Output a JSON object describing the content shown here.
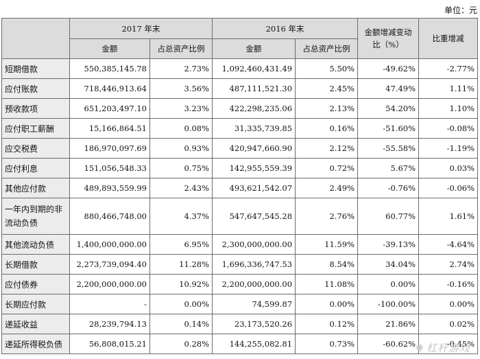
{
  "unit_label": "单位：元",
  "header": {
    "period_2017": "2017 年末",
    "period_2016": "2016 年末",
    "change": "金额增减变动比（%）",
    "ratio_change": "比重增减",
    "amount": "金额",
    "asset_ratio": "占总资产比例"
  },
  "rows": [
    {
      "name": "短期借款",
      "amt17": "550,385,145.78",
      "pct17": "2.73%",
      "amt16": "1,092,460,431.49",
      "pct16": "5.50%",
      "chg": "-49.62%",
      "rchg": "-2.77%"
    },
    {
      "name": "应付账款",
      "amt17": "718,446,913.64",
      "pct17": "3.56%",
      "amt16": "487,111,521.30",
      "pct16": "2.45%",
      "chg": "47.49%",
      "rchg": "1.11%"
    },
    {
      "name": "预收款项",
      "amt17": "651,203,497.10",
      "pct17": "3.23%",
      "amt16": "422,298,235.06",
      "pct16": "2.13%",
      "chg": "54.20%",
      "rchg": "1.10%"
    },
    {
      "name": "应付职工薪酬",
      "amt17": "15,166,864.51",
      "pct17": "0.08%",
      "amt16": "31,335,739.85",
      "pct16": "0.16%",
      "chg": "-51.60%",
      "rchg": "-0.08%"
    },
    {
      "name": "应交税费",
      "amt17": "186,970,097.69",
      "pct17": "0.93%",
      "amt16": "420,947,660.90",
      "pct16": "2.12%",
      "chg": "-55.58%",
      "rchg": "-1.19%"
    },
    {
      "name": "应付利息",
      "amt17": "151,056,548.33",
      "pct17": "0.75%",
      "amt16": "142,955,559.39",
      "pct16": "0.72%",
      "chg": "5.67%",
      "rchg": "0.03%"
    },
    {
      "name": "其他应付款",
      "amt17": "489,893,559.99",
      "pct17": "2.43%",
      "amt16": "493,621,542.07",
      "pct16": "2.49%",
      "chg": "-0.76%",
      "rchg": "-0.06%"
    },
    {
      "name": "一年内到期的非流动负债",
      "amt17": "880,466,748.00",
      "pct17": "4.37%",
      "amt16": "547,647,545.28",
      "pct16": "2.76%",
      "chg": "60.77%",
      "rchg": "1.61%"
    },
    {
      "name": "其他流动负债",
      "amt17": "1,400,000,000.00",
      "pct17": "6.95%",
      "amt16": "2,300,000,000.00",
      "pct16": "11.59%",
      "chg": "-39.13%",
      "rchg": "-4.64%"
    },
    {
      "name": "长期借款",
      "amt17": "2,273,739,094.40",
      "pct17": "11.28%",
      "amt16": "1,696,336,747.53",
      "pct16": "8.54%",
      "chg": "34.04%",
      "rchg": "2.74%"
    },
    {
      "name": "应付债券",
      "amt17": "2,200,000,000.00",
      "pct17": "10.92%",
      "amt16": "2,200,000,000.00",
      "pct16": "11.08%",
      "chg": "0.00%",
      "rchg": "-0.16%"
    },
    {
      "name": "长期应付款",
      "amt17": "-",
      "pct17": "0.00%",
      "amt16": "74,599.87",
      "pct16": "0.00%",
      "chg": "-100.00%",
      "rchg": "0.00%"
    },
    {
      "name": "递延收益",
      "amt17": "28,239,794.13",
      "pct17": "0.14%",
      "amt16": "23,173,520.26",
      "pct16": "0.12%",
      "chg": "21.86%",
      "rchg": "0.02%"
    },
    {
      "name": "递延所得税负债",
      "amt17": "56,808,015.21",
      "pct17": "0.28%",
      "amt16": "144,255,082.81",
      "pct16": "0.73%",
      "chg": "-60.62%",
      "rchg": "-0.45%"
    }
  ],
  "watermark": "杠杆游戏"
}
